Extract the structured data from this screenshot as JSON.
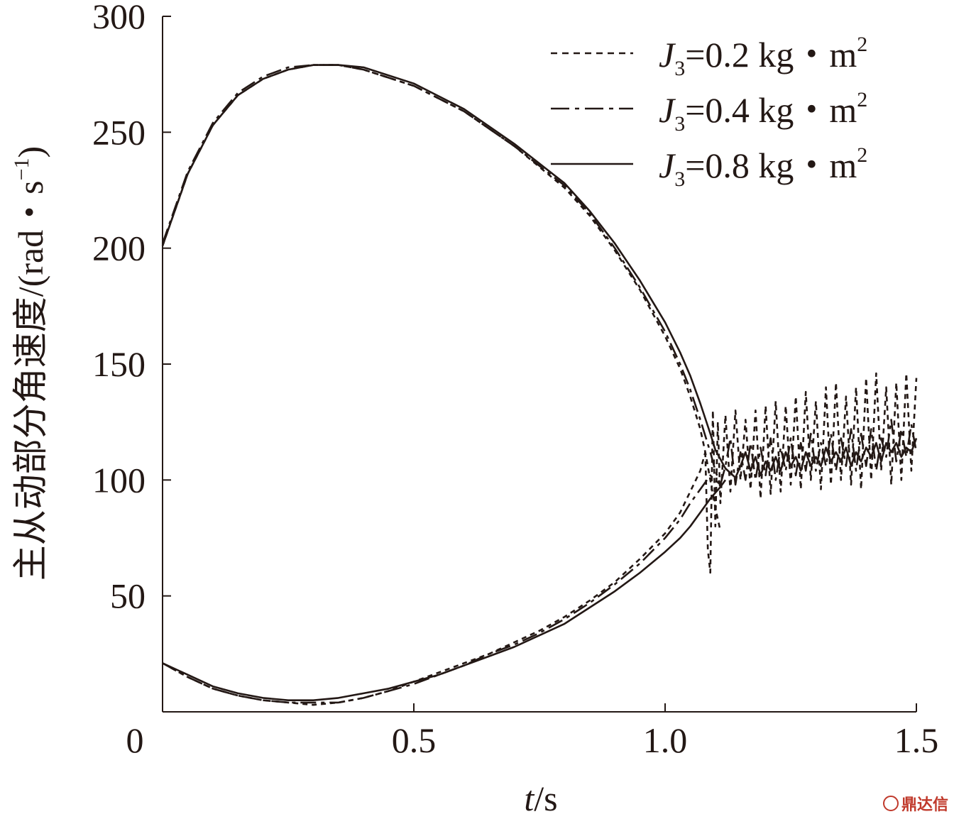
{
  "chart_data": {
    "type": "line",
    "xlabel_italic": "t",
    "xlabel_unit": "/s",
    "ylabel": "主从动部分角速度/(rad・s",
    "ylabel_sup": "−1",
    "ylabel_close": ")",
    "xlim": [
      0,
      1.5
    ],
    "ylim": [
      0,
      300
    ],
    "xticks": [
      0,
      0.5,
      1.0,
      1.5
    ],
    "xtick_labels": [
      "0",
      "0.5",
      "1.0",
      "1.5"
    ],
    "yticks": [
      50,
      100,
      150,
      200,
      250,
      300
    ],
    "ytick_labels": [
      "50",
      "100",
      "150",
      "200",
      "250",
      "300"
    ],
    "legend_position": "top-right",
    "grid": false,
    "series": [
      {
        "name": "J3=0.2 kg・m2",
        "legend": {
          "italic": "J",
          "sub": "3",
          "text": "=0.2 kg・m",
          "sup": "2"
        },
        "style": "dotted",
        "driving": [
          [
            0,
            201
          ],
          [
            0.05,
            232
          ],
          [
            0.1,
            253
          ],
          [
            0.15,
            266
          ],
          [
            0.2,
            273
          ],
          [
            0.25,
            277
          ],
          [
            0.3,
            279
          ],
          [
            0.35,
            279
          ],
          [
            0.4,
            277
          ],
          [
            0.5,
            270
          ],
          [
            0.6,
            259
          ],
          [
            0.7,
            244
          ],
          [
            0.8,
            226
          ],
          [
            0.85,
            214
          ],
          [
            0.9,
            199
          ],
          [
            0.95,
            182
          ],
          [
            1.0,
            162
          ],
          [
            1.03,
            148
          ],
          [
            1.05,
            136
          ],
          [
            1.07,
            122
          ],
          [
            1.08,
            112
          ],
          [
            1.09,
            100
          ],
          [
            1.1,
            88
          ],
          [
            1.11,
            78
          ]
        ],
        "driven": [
          [
            0,
            21
          ],
          [
            0.05,
            15
          ],
          [
            0.1,
            10
          ],
          [
            0.15,
            7
          ],
          [
            0.2,
            5
          ],
          [
            0.25,
            4
          ],
          [
            0.3,
            3
          ],
          [
            0.35,
            4
          ],
          [
            0.4,
            6
          ],
          [
            0.45,
            9
          ],
          [
            0.5,
            13
          ],
          [
            0.55,
            17
          ],
          [
            0.6,
            21
          ],
          [
            0.65,
            25
          ],
          [
            0.7,
            30
          ],
          [
            0.75,
            35
          ],
          [
            0.8,
            41
          ],
          [
            0.85,
            48
          ],
          [
            0.9,
            56
          ],
          [
            0.95,
            66
          ],
          [
            1.0,
            77
          ],
          [
            1.03,
            86
          ],
          [
            1.05,
            95
          ],
          [
            1.07,
            104
          ],
          [
            1.08,
            112
          ]
        ],
        "oscillation": [
          [
            1.08,
            112
          ],
          [
            1.085,
            70
          ],
          [
            1.09,
            60
          ],
          [
            1.095,
            130
          ],
          [
            1.1,
            80
          ],
          [
            1.105,
            125
          ],
          [
            1.11,
            90
          ],
          [
            1.12,
            128
          ],
          [
            1.13,
            95
          ],
          [
            1.14,
            130
          ],
          [
            1.15,
            100
          ],
          [
            1.16,
            126
          ],
          [
            1.17,
            96
          ],
          [
            1.18,
            130
          ],
          [
            1.19,
            92
          ],
          [
            1.2,
            132
          ],
          [
            1.21,
            94
          ],
          [
            1.22,
            134
          ],
          [
            1.23,
            95
          ],
          [
            1.24,
            132
          ],
          [
            1.25,
            98
          ],
          [
            1.26,
            136
          ],
          [
            1.27,
            96
          ],
          [
            1.28,
            138
          ],
          [
            1.29,
            100
          ],
          [
            1.3,
            134
          ],
          [
            1.31,
            96
          ],
          [
            1.32,
            140
          ],
          [
            1.33,
            98
          ],
          [
            1.34,
            142
          ],
          [
            1.35,
            100
          ],
          [
            1.36,
            136
          ],
          [
            1.37,
            98
          ],
          [
            1.38,
            140
          ],
          [
            1.39,
            96
          ],
          [
            1.4,
            144
          ],
          [
            1.41,
            100
          ],
          [
            1.42,
            146
          ],
          [
            1.43,
            104
          ],
          [
            1.44,
            140
          ],
          [
            1.45,
            98
          ],
          [
            1.46,
            142
          ],
          [
            1.47,
            100
          ],
          [
            1.48,
            146
          ],
          [
            1.49,
            104
          ],
          [
            1.5,
            144
          ]
        ]
      },
      {
        "name": "J3=0.4 kg・m2",
        "legend": {
          "italic": "J",
          "sub": "3",
          "text": "=0.4 kg・m",
          "sup": "2"
        },
        "style": "dashdot",
        "driving": [
          [
            0,
            202
          ],
          [
            0.05,
            233
          ],
          [
            0.1,
            254
          ],
          [
            0.15,
            267
          ],
          [
            0.2,
            274
          ],
          [
            0.25,
            278
          ],
          [
            0.3,
            279
          ],
          [
            0.35,
            279
          ],
          [
            0.4,
            277
          ],
          [
            0.5,
            270
          ],
          [
            0.6,
            259
          ],
          [
            0.7,
            244
          ],
          [
            0.8,
            227
          ],
          [
            0.85,
            215
          ],
          [
            0.9,
            200
          ],
          [
            0.95,
            183
          ],
          [
            1.0,
            164
          ],
          [
            1.03,
            150
          ],
          [
            1.05,
            139
          ],
          [
            1.07,
            126
          ],
          [
            1.09,
            112
          ],
          [
            1.1,
            104
          ],
          [
            1.11,
            98
          ]
        ],
        "driven": [
          [
            0,
            21
          ],
          [
            0.05,
            15
          ],
          [
            0.1,
            10
          ],
          [
            0.15,
            7
          ],
          [
            0.2,
            5
          ],
          [
            0.25,
            4
          ],
          [
            0.3,
            4
          ],
          [
            0.35,
            4
          ],
          [
            0.4,
            6
          ],
          [
            0.45,
            9
          ],
          [
            0.5,
            12
          ],
          [
            0.55,
            16
          ],
          [
            0.6,
            20
          ],
          [
            0.65,
            25
          ],
          [
            0.7,
            29
          ],
          [
            0.75,
            34
          ],
          [
            0.8,
            40
          ],
          [
            0.85,
            47
          ],
          [
            0.9,
            55
          ],
          [
            0.95,
            64
          ],
          [
            1.0,
            75
          ],
          [
            1.03,
            83
          ],
          [
            1.05,
            90
          ],
          [
            1.07,
            96
          ],
          [
            1.09,
            102
          ],
          [
            1.11,
            98
          ]
        ],
        "oscillation": [
          [
            1.11,
            98
          ],
          [
            1.12,
            106
          ],
          [
            1.13,
            118
          ],
          [
            1.14,
            98
          ],
          [
            1.15,
            112
          ],
          [
            1.16,
            100
          ],
          [
            1.17,
            116
          ],
          [
            1.18,
            100
          ],
          [
            1.19,
            114
          ],
          [
            1.2,
            102
          ],
          [
            1.21,
            118
          ],
          [
            1.22,
            100
          ],
          [
            1.23,
            114
          ],
          [
            1.24,
            104
          ],
          [
            1.25,
            118
          ],
          [
            1.26,
            102
          ],
          [
            1.27,
            116
          ],
          [
            1.28,
            104
          ],
          [
            1.29,
            120
          ],
          [
            1.3,
            104
          ],
          [
            1.31,
            116
          ],
          [
            1.32,
            106
          ],
          [
            1.33,
            120
          ],
          [
            1.34,
            104
          ],
          [
            1.35,
            118
          ],
          [
            1.36,
            106
          ],
          [
            1.37,
            122
          ],
          [
            1.38,
            104
          ],
          [
            1.39,
            120
          ],
          [
            1.4,
            106
          ],
          [
            1.41,
            122
          ],
          [
            1.42,
            104
          ],
          [
            1.43,
            118
          ],
          [
            1.44,
            110
          ],
          [
            1.45,
            126
          ],
          [
            1.46,
            108
          ],
          [
            1.47,
            122
          ],
          [
            1.48,
            110
          ],
          [
            1.49,
            124
          ],
          [
            1.5,
            112
          ]
        ]
      },
      {
        "name": "J3=0.8 kg・m2",
        "legend": {
          "italic": "J",
          "sub": "3",
          "text": "=0.8 kg・m",
          "sup": "2"
        },
        "style": "solid",
        "driving": [
          [
            0,
            201
          ],
          [
            0.05,
            232
          ],
          [
            0.1,
            253
          ],
          [
            0.15,
            266
          ],
          [
            0.2,
            273
          ],
          [
            0.25,
            277
          ],
          [
            0.3,
            279
          ],
          [
            0.35,
            279
          ],
          [
            0.4,
            278
          ],
          [
            0.5,
            271
          ],
          [
            0.6,
            260
          ],
          [
            0.7,
            245
          ],
          [
            0.8,
            228
          ],
          [
            0.85,
            216
          ],
          [
            0.9,
            202
          ],
          [
            0.95,
            186
          ],
          [
            1.0,
            168
          ],
          [
            1.03,
            155
          ],
          [
            1.05,
            145
          ],
          [
            1.07,
            133
          ],
          [
            1.09,
            120
          ],
          [
            1.1,
            113
          ],
          [
            1.12,
            105
          ],
          [
            1.14,
            101
          ]
        ],
        "driven": [
          [
            0,
            21
          ],
          [
            0.05,
            16
          ],
          [
            0.1,
            11
          ],
          [
            0.15,
            8
          ],
          [
            0.2,
            6
          ],
          [
            0.25,
            5
          ],
          [
            0.3,
            5
          ],
          [
            0.35,
            6
          ],
          [
            0.4,
            8
          ],
          [
            0.45,
            10
          ],
          [
            0.5,
            13
          ],
          [
            0.55,
            16
          ],
          [
            0.6,
            20
          ],
          [
            0.65,
            24
          ],
          [
            0.7,
            28
          ],
          [
            0.75,
            33
          ],
          [
            0.8,
            38
          ],
          [
            0.85,
            45
          ],
          [
            0.9,
            52
          ],
          [
            0.95,
            60
          ],
          [
            1.0,
            69
          ],
          [
            1.03,
            75
          ],
          [
            1.05,
            80
          ],
          [
            1.07,
            86
          ],
          [
            1.09,
            92
          ],
          [
            1.11,
            97
          ],
          [
            1.12,
            100
          ]
        ],
        "oscillation": [
          [
            1.14,
            101
          ],
          [
            1.15,
            106
          ],
          [
            1.16,
            112
          ],
          [
            1.17,
            104
          ],
          [
            1.18,
            110
          ],
          [
            1.19,
            102
          ],
          [
            1.2,
            108
          ],
          [
            1.21,
            104
          ],
          [
            1.22,
            110
          ],
          [
            1.23,
            104
          ],
          [
            1.24,
            112
          ],
          [
            1.25,
            106
          ],
          [
            1.26,
            110
          ],
          [
            1.27,
            104
          ],
          [
            1.28,
            112
          ],
          [
            1.29,
            106
          ],
          [
            1.3,
            110
          ],
          [
            1.31,
            106
          ],
          [
            1.32,
            114
          ],
          [
            1.33,
            108
          ],
          [
            1.34,
            112
          ],
          [
            1.35,
            108
          ],
          [
            1.36,
            114
          ],
          [
            1.37,
            106
          ],
          [
            1.38,
            112
          ],
          [
            1.39,
            108
          ],
          [
            1.4,
            114
          ],
          [
            1.41,
            110
          ],
          [
            1.42,
            116
          ],
          [
            1.43,
            108
          ],
          [
            1.44,
            116
          ],
          [
            1.45,
            112
          ],
          [
            1.46,
            116
          ],
          [
            1.47,
            110
          ],
          [
            1.48,
            114
          ],
          [
            1.49,
            112
          ],
          [
            1.5,
            118
          ]
        ]
      }
    ]
  },
  "watermark": {
    "text": "鼎达信"
  }
}
